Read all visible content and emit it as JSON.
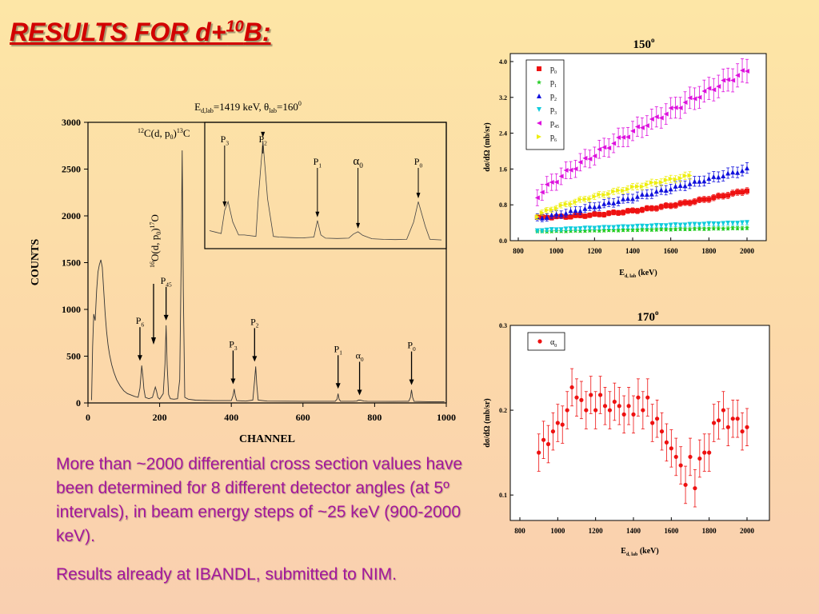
{
  "slide": {
    "title_text": "RESULTS FOR d+",
    "title_sup": "10",
    "title_end": "B:",
    "paragraphs": [
      "More than ~2000 differential cross section values have been determined for 8 different detector angles (at 5º intervals), in beam energy steps of ~25 keV (900-2000 keV).",
      "Results already at IBANDL, submitted to NIM."
    ]
  },
  "chart_data": [
    {
      "type": "line",
      "id": "spectrum",
      "title": "E_d,lab=1419 keV, θ_lab=160°",
      "xlabel": "CHANNEL",
      "ylabel": "COUNTS",
      "xlim": [
        0,
        1000
      ],
      "ylim": [
        0,
        3000
      ],
      "xticks": [
        0,
        200,
        400,
        600,
        800,
        1000
      ],
      "yticks": [
        0,
        500,
        1000,
        1500,
        2000,
        2500,
        3000
      ],
      "x": [
        10,
        13,
        16,
        20,
        24,
        28,
        32,
        36,
        40,
        44,
        48,
        52,
        56,
        60,
        66,
        72,
        80,
        90,
        100,
        110,
        120,
        130,
        140,
        145,
        148,
        150,
        153,
        156,
        160,
        170,
        180,
        185,
        188,
        191,
        195,
        200,
        210,
        215,
        218,
        221,
        225,
        230,
        240,
        250,
        256,
        260,
        263,
        266,
        270,
        280,
        300,
        350,
        400,
        405,
        408,
        411,
        415,
        440,
        460,
        465,
        468,
        471,
        475,
        500,
        600,
        690,
        695,
        698,
        701,
        705,
        740,
        750,
        755,
        760,
        770,
        780,
        850,
        895,
        900,
        903,
        906,
        910,
        950,
        995
      ],
      "y": [
        30,
        600,
        950,
        880,
        1200,
        1400,
        1480,
        1530,
        1450,
        1200,
        950,
        760,
        620,
        520,
        410,
        330,
        250,
        180,
        130,
        100,
        85,
        70,
        60,
        160,
        300,
        400,
        300,
        150,
        60,
        45,
        60,
        130,
        170,
        130,
        60,
        40,
        100,
        420,
        830,
        400,
        90,
        45,
        40,
        45,
        250,
        1500,
        2700,
        1200,
        60,
        40,
        30,
        25,
        25,
        80,
        150,
        80,
        25,
        20,
        30,
        240,
        390,
        200,
        30,
        20,
        18,
        18,
        40,
        100,
        40,
        18,
        18,
        20,
        30,
        30,
        20,
        18,
        16,
        18,
        60,
        140,
        60,
        16,
        14,
        12
      ],
      "peak_labels": [
        {
          "text": "P",
          "sub": "6",
          "x": 145,
          "y": 400
        },
        {
          "text": "P",
          "sub": "45",
          "x": 218,
          "y": 830
        },
        {
          "text": "P",
          "sub": "3",
          "x": 405,
          "y": 150
        },
        {
          "text": "P",
          "sub": "2",
          "x": 465,
          "y": 390
        },
        {
          "text": "P",
          "sub": "1",
          "x": 698,
          "y": 100
        },
        {
          "text": "α",
          "sub": "0",
          "x": 758,
          "y": 30
        },
        {
          "text": "P",
          "sub": "0",
          "x": 903,
          "y": 140
        }
      ],
      "reaction_12C": "12C(d, p0)13C",
      "reaction_16O": "16O(d, p0)17O",
      "inset": {
        "x": [
          0,
          5,
          10,
          13,
          16,
          20,
          25,
          30,
          40,
          42,
          46,
          50,
          55,
          60,
          70,
          80,
          90,
          93,
          96,
          100,
          110,
          120,
          124,
          128,
          132,
          140,
          150,
          160,
          170,
          176,
          180,
          186,
          190,
          200
        ],
        "y": [
          40,
          35,
          30,
          110,
          140,
          70,
          25,
          25,
          20,
          150,
          350,
          150,
          20,
          18,
          16,
          15,
          18,
          75,
          25,
          14,
          13,
          14,
          28,
          36,
          24,
          12,
          10,
          9,
          10,
          70,
          140,
          55,
          10,
          8
        ],
        "labels": [
          {
            "text": "P",
            "sub": "3",
            "x": 13
          },
          {
            "text": "P",
            "sub": "2",
            "x": 46
          },
          {
            "text": "P",
            "sub": "1",
            "x": 93
          },
          {
            "text": "α",
            "sub": "0",
            "x": 128
          },
          {
            "text": "P",
            "sub": "0",
            "x": 180
          }
        ]
      }
    },
    {
      "type": "scatter",
      "id": "xs150",
      "title": "150°",
      "xlabel": "E_d, lab (keV)",
      "ylabel": "dσ/dΩ (mb/sr)",
      "xlim": [
        800,
        2100
      ],
      "ylim": [
        0,
        4.0
      ],
      "xticks": [
        800,
        1000,
        1200,
        1400,
        1600,
        1800,
        2000
      ],
      "yticks": [
        0.0,
        0.8,
        1.6,
        2.4,
        3.2,
        4.0
      ],
      "x_start": 900,
      "x_step": 25,
      "n_points": 45,
      "series": [
        {
          "name": "p0",
          "color": "#ee1111",
          "marker": "square",
          "y_start": 0.52,
          "y_end": 1.12,
          "err": 0.06,
          "curve": 1.8
        },
        {
          "name": "p1",
          "color": "#22cc22",
          "marker": "star",
          "y_start": 0.2,
          "y_end": 0.28,
          "err": 0.03,
          "curve": 1
        },
        {
          "name": "p2",
          "color": "#1111dd",
          "marker": "tri-up",
          "y_start": 0.5,
          "y_end": 1.6,
          "err": 0.1,
          "curve": 1.1
        },
        {
          "name": "p3",
          "color": "#11ccdd",
          "marker": "tri-down",
          "y_start": 0.22,
          "y_end": 0.4,
          "err": 0.04,
          "curve": 0.8
        },
        {
          "name": "p45",
          "color": "#dd11dd",
          "marker": "tri-left",
          "y_start": 1.0,
          "y_end": 3.8,
          "err": 0.22,
          "curve": 0.85
        },
        {
          "name": "p6",
          "color": "#eeee11",
          "marker": "tri-right",
          "y_start": 0.55,
          "y_end": 1.45,
          "err": 0.07,
          "curve": 0.75,
          "x_end": 1700
        }
      ]
    },
    {
      "type": "scatter",
      "id": "xs170",
      "title": "170°",
      "xlabel": "E_d, lab (keV)",
      "ylabel": "dσ/dΩ (mb/sr)",
      "xlim": [
        800,
        2050
      ],
      "ylim": [
        0.07,
        0.3
      ],
      "xticks": [
        800,
        1000,
        1200,
        1400,
        1600,
        1800,
        2000
      ],
      "yticks": [
        0.1,
        0.2,
        0.3
      ],
      "series": [
        {
          "name": "α0",
          "color": "#ee1111",
          "x": [
            900,
            925,
            950,
            975,
            1000,
            1025,
            1050,
            1075,
            1100,
            1125,
            1150,
            1175,
            1200,
            1225,
            1250,
            1275,
            1300,
            1325,
            1350,
            1375,
            1400,
            1425,
            1450,
            1475,
            1500,
            1525,
            1550,
            1575,
            1600,
            1625,
            1650,
            1675,
            1700,
            1725,
            1750,
            1775,
            1800,
            1825,
            1850,
            1875,
            1900,
            1925,
            1950,
            1975,
            2000
          ],
          "y": [
            0.15,
            0.165,
            0.16,
            0.175,
            0.185,
            0.183,
            0.2,
            0.227,
            0.215,
            0.212,
            0.2,
            0.218,
            0.2,
            0.218,
            0.205,
            0.2,
            0.21,
            0.205,
            0.195,
            0.205,
            0.195,
            0.215,
            0.2,
            0.215,
            0.185,
            0.19,
            0.175,
            0.162,
            0.155,
            0.145,
            0.135,
            0.112,
            0.145,
            0.108,
            0.143,
            0.15,
            0.15,
            0.185,
            0.188,
            0.2,
            0.18,
            0.19,
            0.19,
            0.175,
            0.18
          ],
          "err": 0.022
        }
      ]
    }
  ]
}
